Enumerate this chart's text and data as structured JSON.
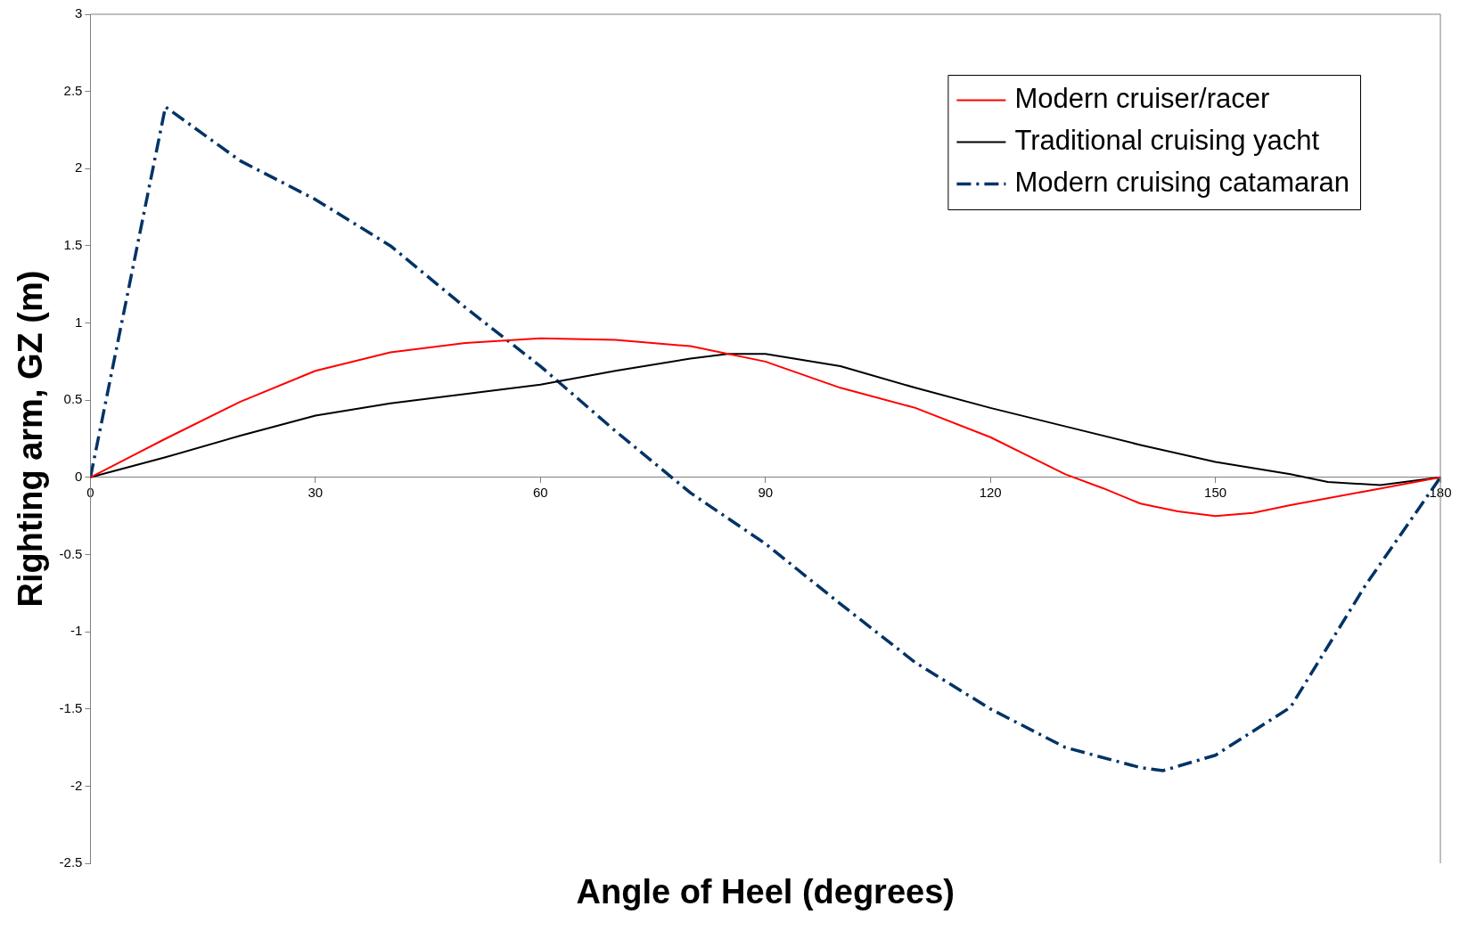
{
  "chart_data": {
    "type": "line",
    "xlabel": "Angle of Heel (degrees)",
    "ylabel": "Righting arm, GZ (m)",
    "xlim": [
      0,
      180
    ],
    "xticks": [
      0,
      30,
      60,
      90,
      120,
      150,
      180
    ],
    "ylim": [
      -2.5,
      3
    ],
    "yticks": [
      -2.5,
      -2,
      -1.5,
      -1,
      -0.5,
      0,
      0.5,
      1,
      1.5,
      2,
      2.5,
      3
    ],
    "grid": false,
    "legend": "top right",
    "marker": "none",
    "series": [
      {
        "name": "Modern cruiser/racer",
        "color": "#ff0000",
        "line_style": "solid",
        "x": [
          0,
          10,
          20,
          30,
          40,
          50,
          60,
          70,
          80,
          90,
          100,
          110,
          120,
          130,
          135,
          140,
          145,
          150,
          155,
          160,
          170,
          180
        ],
        "values": [
          0,
          0.25,
          0.49,
          0.69,
          0.81,
          0.87,
          0.9,
          0.89,
          0.85,
          0.75,
          0.58,
          0.45,
          0.26,
          0.02,
          -0.07,
          -0.17,
          -0.22,
          -0.25,
          -0.23,
          -0.18,
          -0.09,
          0
        ]
      },
      {
        "name": "Traditional cruising yacht",
        "color": "#000000",
        "line_style": "solid",
        "x": [
          0,
          10,
          20,
          30,
          40,
          50,
          60,
          70,
          80,
          85,
          90,
          100,
          110,
          120,
          130,
          140,
          150,
          160,
          165,
          172,
          180
        ],
        "values": [
          0,
          0.13,
          0.27,
          0.4,
          0.48,
          0.54,
          0.6,
          0.69,
          0.77,
          0.8,
          0.8,
          0.72,
          0.58,
          0.45,
          0.33,
          0.21,
          0.1,
          0.02,
          -0.03,
          -0.05,
          0
        ]
      },
      {
        "name": "Modern cruising catamaran",
        "color": "#003366",
        "line_style": "dashdot",
        "x": [
          0,
          10,
          20,
          30,
          40,
          50,
          60,
          70,
          80,
          90,
          100,
          110,
          120,
          130,
          140,
          143,
          150,
          160,
          170,
          180
        ],
        "values": [
          0,
          2.4,
          2.05,
          1.8,
          1.5,
          1.1,
          0.72,
          0.3,
          -0.1,
          -0.43,
          -0.82,
          -1.2,
          -1.5,
          -1.75,
          -1.88,
          -1.9,
          -1.8,
          -1.49,
          -0.7,
          0
        ]
      }
    ]
  }
}
